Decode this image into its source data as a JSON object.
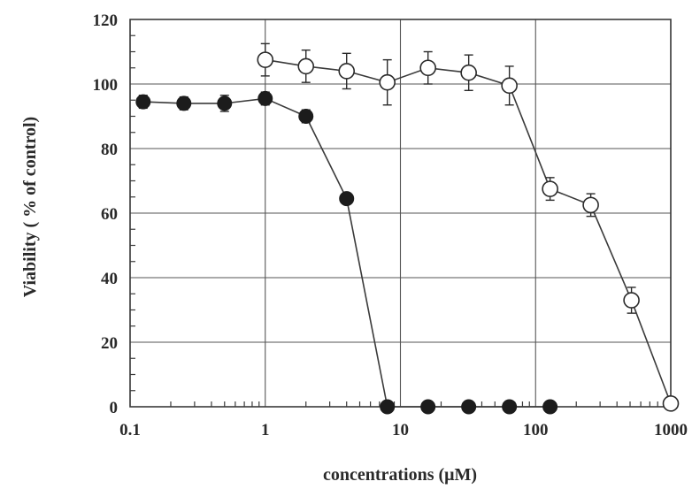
{
  "chart_data": {
    "type": "line",
    "title": "",
    "xlabel": "concentrations (μM)",
    "ylabel": "Viability ( % of control)",
    "x_scale": "log",
    "xlim": [
      0.1,
      1000
    ],
    "ylim": [
      0,
      120
    ],
    "x_ticks": [
      "0.1",
      "1",
      "10",
      "100",
      "1000"
    ],
    "y_ticks": [
      "0",
      "20",
      "40",
      "60",
      "80",
      "100",
      "120"
    ],
    "grid": true,
    "legend": "none",
    "colors": {
      "line": "#3a3a3a",
      "grid": "#555555",
      "filled_marker": "#1c1c1c",
      "open_marker_fill": "#ffffff"
    },
    "series": [
      {
        "marker": "filled-circle",
        "x": [
          0.125,
          0.25,
          0.5,
          1,
          2,
          4,
          8,
          16,
          32,
          64,
          128
        ],
        "y": [
          94.5,
          94,
          94,
          95.5,
          90,
          64.5,
          0,
          0,
          0,
          0,
          0
        ],
        "err": [
          2,
          2,
          2.5,
          2,
          2,
          0,
          0,
          0,
          0,
          0,
          0
        ]
      },
      {
        "marker": "open-circle",
        "x": [
          1,
          2,
          4,
          8,
          16,
          32,
          64,
          128,
          256,
          512,
          1000
        ],
        "y": [
          107.5,
          105.5,
          104,
          100.5,
          105,
          103.5,
          99.5,
          67.5,
          62.5,
          33,
          1
        ],
        "err": [
          5,
          5,
          5.5,
          7,
          5,
          5.5,
          6,
          3.5,
          3.5,
          4,
          0
        ]
      }
    ]
  }
}
